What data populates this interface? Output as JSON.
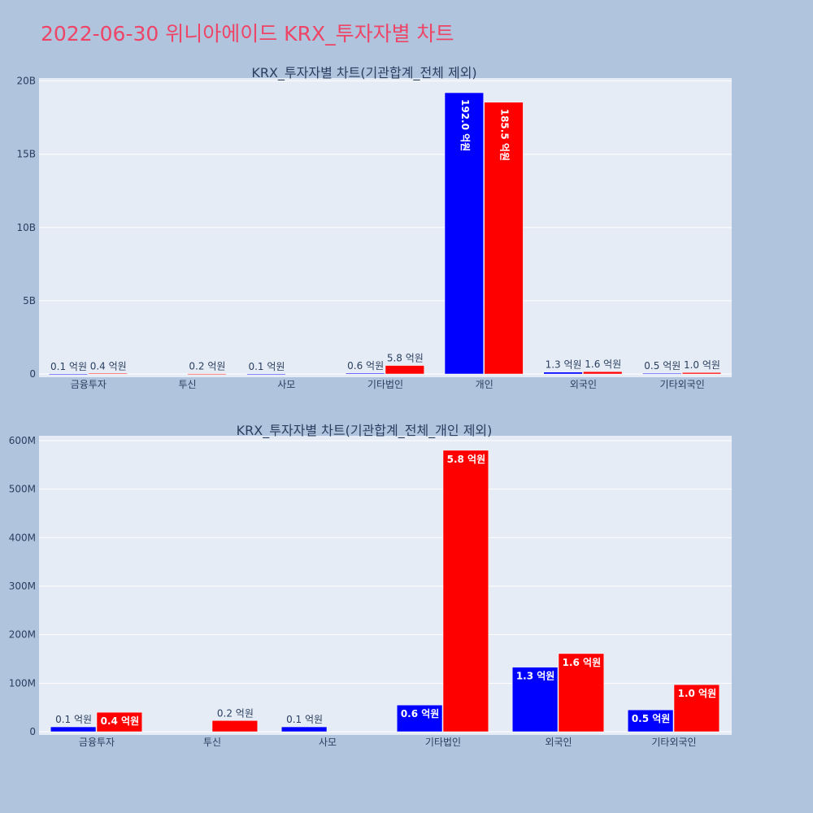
{
  "page": {
    "title": "2022-06-30 위니아에이드 KRX_투자자별 차트",
    "background": "#b0c4de",
    "plot_background": "#e5ecf6",
    "title_color": "#ee4466"
  },
  "chart_data": [
    {
      "type": "bar",
      "title": "KRX_투자자별 차트(기관합계_전체 제외)",
      "categories": [
        "금융투자",
        "투신",
        "사모",
        "기타법인",
        "개인",
        "외국인",
        "기타외국인"
      ],
      "series": [
        {
          "color": "#0000ff",
          "values": [
            10000000,
            0,
            10000000,
            60000000,
            19200000000,
            130000000,
            50000000
          ],
          "labels": [
            "0.1 억원",
            "",
            "0.1 억원",
            "0.6 억원",
            "192.0 억원",
            "1.3 억원",
            "0.5 억원"
          ]
        },
        {
          "color": "#ff0000",
          "values": [
            40000000,
            20000000,
            0,
            580000000,
            18550000000,
            160000000,
            100000000
          ],
          "labels": [
            "0.4 억원",
            "0.2 억원",
            "",
            "5.8 억원",
            "185.5 억원",
            "1.6 억원",
            "1.0 억원"
          ]
        }
      ],
      "yticks": [
        {
          "value": 0,
          "label": "0"
        },
        {
          "value": 5000000000,
          "label": "5B"
        },
        {
          "value": 10000000000,
          "label": "10B"
        },
        {
          "value": 15000000000,
          "label": "15B"
        },
        {
          "value": 20000000000,
          "label": "20B"
        }
      ],
      "ylim": [
        0,
        20200000000
      ],
      "grid": true,
      "legend": "none"
    },
    {
      "type": "bar",
      "title": "KRX_투자자별 차트(기관합계_전체_개인 제외)",
      "categories": [
        "금융투자",
        "투신",
        "사모",
        "기타법인",
        "외국인",
        "기타외국인"
      ],
      "series": [
        {
          "color": "#0000ff",
          "values": [
            10000000,
            0,
            10000000,
            55000000,
            133000000,
            45000000
          ],
          "labels": [
            "0.1 억원",
            "",
            "0.1 억원",
            "0.6 억원",
            "1.3 억원",
            "0.5 억원"
          ]
        },
        {
          "color": "#ff0000",
          "values": [
            40000000,
            23000000,
            0,
            580000000,
            161000000,
            97000000
          ],
          "labels": [
            "0.4 억원",
            "0.2 억원",
            "",
            "5.8 억원",
            "1.6 억원",
            "1.0 억원"
          ]
        }
      ],
      "yticks": [
        {
          "value": 0,
          "label": "0"
        },
        {
          "value": 100000000,
          "label": "100M"
        },
        {
          "value": 200000000,
          "label": "200M"
        },
        {
          "value": 300000000,
          "label": "300M"
        },
        {
          "value": 400000000,
          "label": "400M"
        },
        {
          "value": 500000000,
          "label": "500M"
        },
        {
          "value": 600000000,
          "label": "600M"
        }
      ],
      "ylim": [
        0,
        610000000
      ],
      "grid": true,
      "legend": "none"
    }
  ]
}
